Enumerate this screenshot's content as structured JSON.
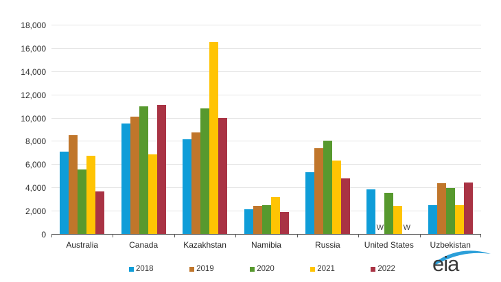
{
  "chart_data": {
    "type": "bar",
    "categories": [
      "Australia",
      "Canada",
      "Kazakhstan",
      "Namibia",
      "Russia",
      "United States",
      "Uzbekistan"
    ],
    "series": [
      {
        "name": "2018",
        "color": "#0f9dd8",
        "values": [
          7100,
          9500,
          8150,
          2150,
          5300,
          3850,
          2500
        ]
      },
      {
        "name": "2019",
        "color": "#c0762b",
        "values": [
          8500,
          10100,
          8750,
          2400,
          7350,
          "W",
          4350
        ]
      },
      {
        "name": "2020",
        "color": "#57992e",
        "values": [
          5550,
          11000,
          10800,
          2450,
          8050,
          3550,
          3950
        ]
      },
      {
        "name": "2021",
        "color": "#ffc403",
        "values": [
          6700,
          6850,
          16550,
          3200,
          6300,
          2400,
          2450
        ]
      },
      {
        "name": "2022",
        "color": "#a93344",
        "values": [
          3650,
          11100,
          10000,
          1900,
          4800,
          "W",
          4400
        ]
      }
    ],
    "ylim": [
      0,
      18000
    ],
    "ytick_step": 2000,
    "ytick_labels": [
      "0",
      "2,000",
      "4,000",
      "6,000",
      "8,000",
      "10,000",
      "12,000",
      "14,000",
      "16,000",
      "18,000"
    ],
    "grid": true,
    "legend_position": "bottom",
    "withheld_marker": "W",
    "title": "",
    "xlabel": "",
    "ylabel": ""
  },
  "colors": {
    "gridline": "#e4e4e4",
    "axis": "#595959",
    "text": "#262626",
    "logo_blue": "#2b9fd9"
  },
  "branding": {
    "logo_text": "eia"
  }
}
